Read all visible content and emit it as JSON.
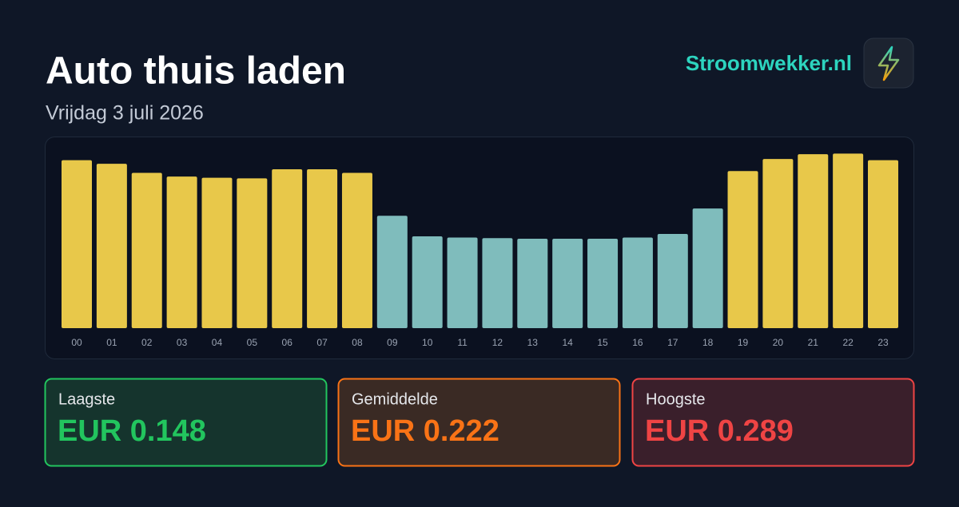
{
  "header": {
    "title": "Auto thuis laden",
    "subtitle": "Vrijdag 3 juli 2026",
    "brand": "Stroomwekker.nl"
  },
  "chart_data": {
    "type": "bar",
    "categories": [
      "00",
      "01",
      "02",
      "03",
      "04",
      "05",
      "06",
      "07",
      "08",
      "09",
      "10",
      "11",
      "12",
      "13",
      "14",
      "15",
      "16",
      "17",
      "18",
      "19",
      "20",
      "21",
      "22",
      "23"
    ],
    "values": [
      0.278,
      0.272,
      0.257,
      0.251,
      0.249,
      0.248,
      0.263,
      0.263,
      0.257,
      0.186,
      0.152,
      0.15,
      0.149,
      0.148,
      0.148,
      0.148,
      0.15,
      0.156,
      0.198,
      0.26,
      0.28,
      0.288,
      0.289,
      0.278
    ],
    "colors": [
      "#e8c84a",
      "#e8c84a",
      "#e8c84a",
      "#e8c84a",
      "#e8c84a",
      "#e8c84a",
      "#e8c84a",
      "#e8c84a",
      "#e8c84a",
      "#7fbcbc",
      "#7fbcbc",
      "#7fbcbc",
      "#7fbcbc",
      "#7fbcbc",
      "#7fbcbc",
      "#7fbcbc",
      "#7fbcbc",
      "#7fbcbc",
      "#7fbcbc",
      "#e8c84a",
      "#e8c84a",
      "#e8c84a",
      "#e8c84a",
      "#e8c84a"
    ],
    "ylim": [
      0,
      0.3
    ]
  },
  "stats": [
    {
      "label": "Laagste",
      "value": "EUR 0.148"
    },
    {
      "label": "Gemiddelde",
      "value": "EUR 0.222"
    },
    {
      "label": "Hoogste",
      "value": "EUR 0.289"
    }
  ]
}
